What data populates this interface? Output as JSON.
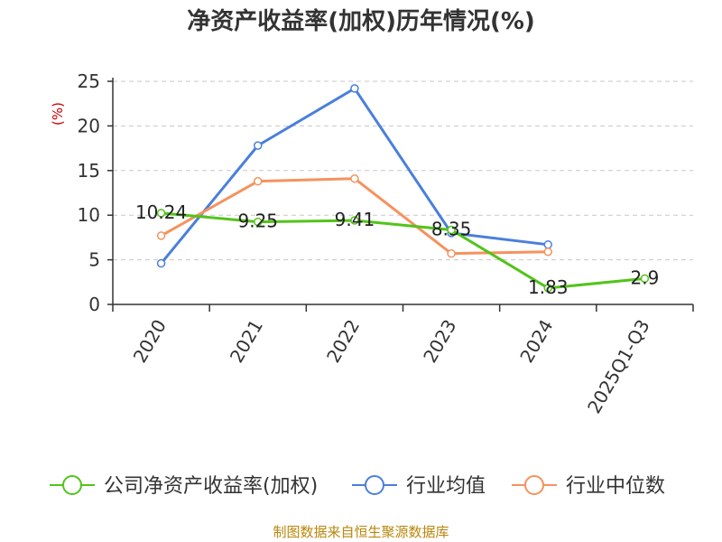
{
  "title": "净资产收益率(加权)历年情况(%)",
  "source_note": "制图数据来自恒生聚源数据库",
  "chart_data": {
    "type": "line",
    "title": "净资产收益率(加权)历年情况(%)",
    "xlabel": "",
    "ylabel": "(%)",
    "ylim": [
      0,
      25
    ],
    "yticks": [
      0,
      5,
      10,
      15,
      20,
      25
    ],
    "grid": true,
    "legend_position": "bottom",
    "categories": [
      "2020",
      "2021",
      "2022",
      "2023",
      "2024",
      "2025Q1-Q3"
    ],
    "series": [
      {
        "name": "公司净资产收益率(加权)",
        "color": "#52c41a",
        "values": [
          10.24,
          9.25,
          9.41,
          8.35,
          1.83,
          2.9
        ],
        "labels": [
          "10.24",
          "9.25",
          "9.41",
          "8.35",
          "1.83",
          "2.9"
        ]
      },
      {
        "name": "行业均值",
        "color": "#4a7fdc",
        "values": [
          4.6,
          17.8,
          24.2,
          8.0,
          6.7,
          null
        ],
        "labels": null
      },
      {
        "name": "行业中位数",
        "color": "#f5925e",
        "values": [
          7.7,
          13.8,
          14.1,
          5.7,
          5.9,
          null
        ],
        "labels": null
      }
    ]
  }
}
